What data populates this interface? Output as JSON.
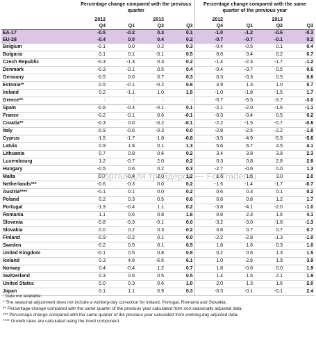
{
  "header": {
    "group1_title": "Percentage change compared with the previous quarter",
    "group2_title": "Percentage change compared with the same quarter of the previous year",
    "year_row": [
      "2012",
      "",
      "2013",
      "",
      "2012",
      "",
      "2013",
      ""
    ],
    "quarter_row": [
      "Q4",
      "Q1",
      "Q2",
      "Q3",
      "Q4",
      "Q1",
      "Q2",
      "Q3"
    ]
  },
  "rows": [
    {
      "label": "EA-17",
      "values": [
        "-0.5",
        "-0.2",
        "0.3",
        "0.1",
        "-1.0",
        "-1.2",
        "-0.6",
        "-0.3"
      ],
      "type": "agg"
    },
    {
      "label": "EU-28",
      "values": [
        "-0.4",
        "0.0",
        "0.4",
        "0.2",
        "-0.7",
        "-0.7",
        "-0.1",
        "0.2"
      ],
      "type": "agg"
    },
    {
      "label": "Belgium",
      "values": [
        "-0.1",
        "0.0",
        "0.2",
        "0.3",
        "-0.4",
        "-0.5",
        "0.1",
        "0.4"
      ],
      "type": "row"
    },
    {
      "label": "Bulgaria",
      "values": [
        "0.1",
        "0.1",
        "-0.1",
        "0.5",
        "0.6",
        "0.4",
        "0.2",
        "0.7"
      ],
      "type": "row"
    },
    {
      "label": "Czech Republic",
      "values": [
        "-0.3",
        "-1.3",
        "0.3",
        "0.2",
        "-1.4",
        "-2.3",
        "-1.7",
        "-1.2"
      ],
      "type": "row"
    },
    {
      "label": "Denmark",
      "values": [
        "-0.3",
        "-0.1",
        "0.5",
        "0.4",
        "-0.4",
        "-0.7",
        "0.5",
        "0.6"
      ],
      "type": "row"
    },
    {
      "label": "Germany",
      "values": [
        "-0.5",
        "0.0",
        "0.7",
        "0.3",
        "0.3",
        "-0.3",
        "0.5",
        "0.6"
      ],
      "type": "row"
    },
    {
      "label": "Estonia**",
      "values": [
        "0.5",
        "-0.1",
        "-0.2",
        "0.6",
        "4.9",
        "1.3",
        "1.0",
        "0.7"
      ],
      "type": "row"
    },
    {
      "label": "Ireland",
      "values": [
        "0.2",
        "-1.1",
        "1.0",
        "1.5",
        "-1.0",
        "-1.8",
        "-1.5",
        "1.7"
      ],
      "type": "row"
    },
    {
      "label": "Greece**",
      "values": [
        ":",
        ":",
        ":",
        ":",
        "-5.7",
        "-5.5",
        "-3.7",
        "-3.0"
      ],
      "type": "row"
    },
    {
      "label": "Spain",
      "values": [
        "-0.8",
        "-0.4",
        "-0.1",
        "0.1",
        "-2.1",
        "-2.0",
        "-1.6",
        "-1.1"
      ],
      "type": "row"
    },
    {
      "label": "France",
      "values": [
        "-0.2",
        "-0.1",
        "0.6",
        "-0.1",
        "-0.3",
        "-0.4",
        "0.5",
        "0.2"
      ],
      "type": "row"
    },
    {
      "label": "Croatia**",
      "values": [
        "-0.3",
        "0.0",
        "-0.2",
        "-0.1",
        "-2.2",
        "-1.5",
        "-0.7",
        "-0.6"
      ],
      "type": "row"
    },
    {
      "label": "Italy",
      "values": [
        "-0.9",
        "-0.6",
        "-0.3",
        "0.0",
        "-2.8",
        "-2.5",
        "-2.2",
        "-1.8"
      ],
      "type": "row"
    },
    {
      "label": "Cyprus",
      "values": [
        "-1.5",
        "-1.7",
        "-1.8",
        "-0.8",
        "-3.5",
        "-4.9",
        "-5.9",
        "-5.6"
      ],
      "type": "row"
    },
    {
      "label": "Latvia",
      "values": [
        "0.9",
        "1.8",
        "0.1",
        "1.3",
        "5.6",
        "6.7",
        "4.5",
        "4.1"
      ],
      "type": "row"
    },
    {
      "label": "Lithuania",
      "values": [
        "0.7",
        "0.8",
        "0.6",
        "0.2",
        "3.4",
        "3.8",
        "3.8",
        "2.3"
      ],
      "type": "row"
    },
    {
      "label": "Luxembourg",
      "values": [
        "1.2",
        "-0.7",
        "2.0",
        "0.2",
        "0.3",
        "0.8",
        "2.8",
        "2.8"
      ],
      "type": "row"
    },
    {
      "label": "Hungary",
      "values": [
        "-0.5",
        "0.6",
        "0.2",
        "0.3",
        "-2.7",
        "-0.6",
        "0.0",
        "1.3"
      ],
      "type": "row"
    },
    {
      "label": "Malta",
      "values": [
        "0.7",
        "-0.4",
        "2.0",
        "1.2",
        "1.6",
        "1.6",
        "3.0",
        "2.0"
      ],
      "type": "row"
    },
    {
      "label": "Netherlands***",
      "values": [
        "-0.6",
        "-0.3",
        "0.0",
        "0.2",
        "-1.5",
        "-1.4",
        "-1.7",
        "-0.7"
      ],
      "type": "row"
    },
    {
      "label": "Austria****",
      "values": [
        "-0.1",
        "0.1",
        "0.0",
        "0.2",
        "0.6",
        "0.3",
        "0.1",
        "0.2"
      ],
      "type": "row"
    },
    {
      "label": "Poland",
      "values": [
        "0.2",
        "0.3",
        "0.5",
        "0.6",
        "0.8",
        "0.8",
        "1.2",
        "1.7"
      ],
      "type": "row"
    },
    {
      "label": "Portugal",
      "values": [
        "-1.9",
        "-0.4",
        "1.1",
        "0.2",
        "-3.8",
        "-4.1",
        "-2.0",
        "-1.0"
      ],
      "type": "row"
    },
    {
      "label": "Romania",
      "values": [
        "1.1",
        "0.6",
        "0.8",
        "1.6",
        "0.8",
        "2.3",
        "1.6",
        "4.1"
      ],
      "type": "row"
    },
    {
      "label": "Slovenia",
      "values": [
        "-0.8",
        "-0.3",
        "-0.1",
        "0.0",
        "-3.2",
        "-3.0",
        "-1.8",
        "-1.3"
      ],
      "type": "row"
    },
    {
      "label": "Slovakia",
      "values": [
        "0.0",
        "0.2",
        "0.3",
        "0.2",
        "0.8",
        "0.7",
        "0.7",
        "0.7"
      ],
      "type": "row"
    },
    {
      "label": "Finland",
      "values": [
        "-0.9",
        "-0.2",
        "0.1",
        "0.0",
        "-2.2",
        "-2.8",
        "-1.3",
        "-1.0"
      ],
      "type": "row"
    },
    {
      "label": "Sweden",
      "values": [
        "-0.2",
        "0.5",
        "0.1",
        "0.5",
        "1.8",
        "1.6",
        "0.3",
        "1.0"
      ],
      "type": "row"
    },
    {
      "label": "United Kingdom",
      "values": [
        "-0.1",
        "0.5",
        "0.8",
        "0.8",
        "0.2",
        "0.6",
        "1.3",
        "1.5"
      ],
      "type": "row"
    },
    {
      "label": "Iceland",
      "values": [
        "0.3",
        "4.6",
        "-6.6",
        "6.1",
        "1.0",
        "2.6",
        "1.9",
        "3.9"
      ],
      "type": "row"
    },
    {
      "label": "Norway",
      "values": [
        "0.4",
        "-0.4",
        "1.2",
        "0.7",
        "1.8",
        "-0.6",
        "0.0",
        "1.9"
      ],
      "type": "row"
    },
    {
      "label": "Switzerland",
      "values": [
        "0.3",
        "0.6",
        "0.5",
        "0.5",
        "1.4",
        "1.5",
        "2.1",
        "1.9"
      ],
      "type": "row"
    },
    {
      "label": "United States",
      "values": [
        "0.0",
        "0.3",
        "0.6",
        "1.0",
        "2.0",
        "1.3",
        "1.6",
        "2.0"
      ],
      "type": "row"
    },
    {
      "label": "Japan",
      "values": [
        "0.1",
        "1.1",
        "0.9",
        "0.3",
        "-0.3",
        "-0.1",
        "-0.1",
        "2.4"
      ],
      "type": "row"
    }
  ],
  "notes": [
    ": Data not available.",
    "* The seasonal adjustment does not include a working-day correction for Ireland, Portugal, Romania and Slovakia.",
    "** Percentage change compared with the same quarter of the previous year calculated from non-seasonally adjusted data.",
    "*** Percentage change compared with the same quarter of the previous year calculated from working-day adjusted data.",
    "**** Growth rates are calculated using the trend component."
  ],
  "watermark": "Портал для трейдеров — ForTrader.ru"
}
